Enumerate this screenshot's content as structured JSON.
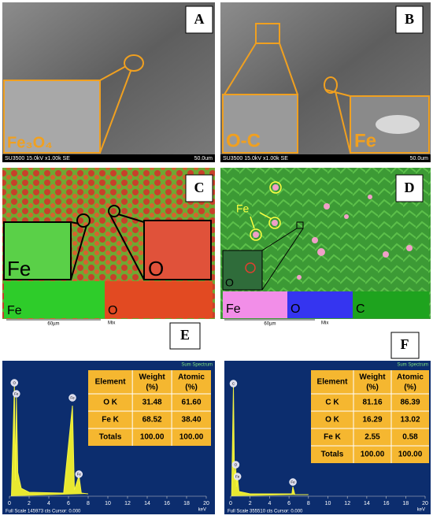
{
  "panels": {
    "A": {
      "label": "A",
      "footer": "SU3500 15.0kV x1.00k SE",
      "scale": "50.0um",
      "inset": "Fe₃O₄"
    },
    "B": {
      "label": "B",
      "footer": "SU3500 15.0kV x1.00k SE",
      "scale": "50.0um",
      "inset_left": "O-C",
      "inset_right": "Fe"
    },
    "C": {
      "label": "C",
      "inset_left": "Fe",
      "inset_right": "O",
      "strip": [
        "Fe",
        "O"
      ],
      "scale": "60µm",
      "mode": "Mix"
    },
    "D": {
      "label": "D",
      "marker": "Fe",
      "inset": "O",
      "strip": [
        "Fe",
        "O",
        "C"
      ],
      "scale": "60µm",
      "mode": "Mix"
    },
    "E": {
      "label": "E"
    },
    "F": {
      "label": "F"
    }
  },
  "spectra": [
    {
      "title": "Sum Spectrum",
      "peaks": [
        "O",
        "Fe",
        "Fe",
        "Fe"
      ],
      "table": {
        "header": [
          [
            "Element"
          ],
          [
            "Weight",
            "(%)"
          ],
          [
            "Atomic",
            "(%)"
          ]
        ],
        "rows": [
          [
            "O K",
            "31.48",
            "61.60"
          ],
          [
            "Fe K",
            "68.52",
            "38.40"
          ],
          [
            "Totals",
            "100.00",
            "100.00"
          ]
        ]
      },
      "xticks": [
        "0",
        "2",
        "4",
        "6",
        "8",
        "10",
        "12",
        "14",
        "16",
        "18",
        "20"
      ],
      "xunit": "keV",
      "footer": "Full Scale 145973 cts Cursor: 0.000"
    },
    {
      "title": "Sum Spectrum",
      "peaks": [
        "C",
        "O",
        "Fe",
        "Fe"
      ],
      "table": {
        "header": [
          [
            "Element"
          ],
          [
            "Weight",
            "(%)"
          ],
          [
            "Atomic",
            "(%)"
          ]
        ],
        "rows": [
          [
            "C K",
            "81.16",
            "86.39"
          ],
          [
            "O K",
            "16.29",
            "13.02"
          ],
          [
            "Fe K",
            "2.55",
            "0.58"
          ],
          [
            "Totals",
            "100.00",
            "100.00"
          ]
        ]
      },
      "xticks": [
        "0",
        "2",
        "4",
        "6",
        "8",
        "10",
        "12",
        "14",
        "16",
        "18",
        "20"
      ],
      "xunit": "keV",
      "footer": "Full Scale 355510 cts Cursor: 0.000"
    }
  ]
}
